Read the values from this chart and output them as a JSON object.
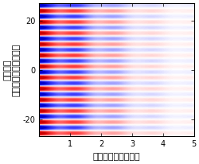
{
  "title": "",
  "xlabel": "時間経過（ナノ秒）",
  "ylabel": "空間位置\n（マイクロメートル）",
  "xlim": [
    0,
    5
  ],
  "ylim": [
    -27,
    27
  ],
  "xticks": [
    1,
    2,
    3,
    4,
    5
  ],
  "xtick_labels": [
    "1",
    "2",
    "3",
    "4",
    "5"
  ],
  "yticks": [
    -20,
    0,
    20
  ],
  "time_points": 500,
  "space_points": 400,
  "background_color": "#ffffff",
  "wave_frequency": 12,
  "decay_rate": 0.7,
  "cmap_colors": [
    "#0000cc",
    "#4444ff",
    "#aaaaff",
    "#ffffff",
    "#ffaaaa",
    "#ff4444",
    "#cc0000"
  ],
  "cmap_nodes": [
    0.0,
    0.25,
    0.4,
    0.5,
    0.6,
    0.75,
    1.0
  ]
}
